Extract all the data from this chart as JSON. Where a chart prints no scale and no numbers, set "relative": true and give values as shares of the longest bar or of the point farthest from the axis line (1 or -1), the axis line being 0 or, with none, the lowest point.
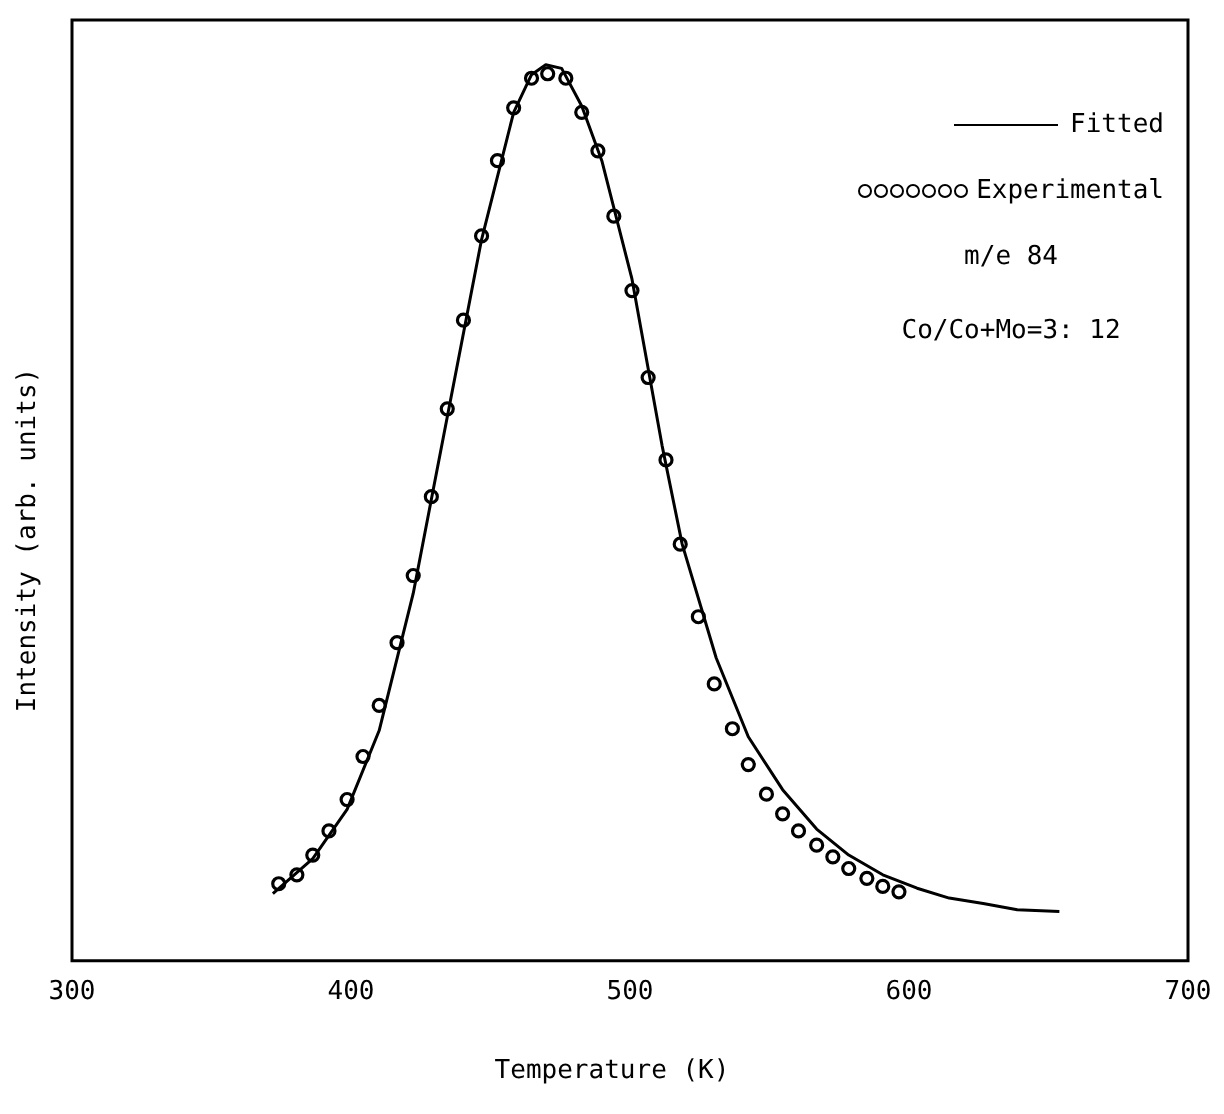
{
  "chart_data": {
    "type": "scatter",
    "xlabel": "Temperature (K)",
    "ylabel": "Intensity (arb. units)",
    "relative": true,
    "xlim": [
      300,
      700
    ],
    "xticks": [
      300,
      400,
      500,
      600,
      700
    ],
    "grid": false,
    "legend": "top right",
    "annotations": [
      "m/e 84",
      "Co/Co+Mo=3: 12"
    ],
    "series": [
      {
        "name": "Fitted",
        "type": "line",
        "color": "#000000",
        "marker": "none",
        "line_style": "solid",
        "x": [
          372.0,
          386.3,
          398.6,
          410.1,
          422.3,
          434.5,
          446.8,
          458.3,
          464.7,
          469.8,
          475.5,
          482.7,
          489.9,
          500.7,
          511.5,
          518.7,
          530.9,
          542.4,
          554.7,
          566.9,
          578.4,
          590.6,
          602.9,
          614.4,
          626.6,
          638.8,
          653.9
        ],
        "values": [
          0.075,
          0.114,
          0.169,
          0.257,
          0.41,
          0.607,
          0.805,
          0.947,
          0.989,
          1.0,
          0.996,
          0.954,
          0.893,
          0.761,
          0.575,
          0.465,
          0.338,
          0.25,
          0.191,
          0.147,
          0.118,
          0.096,
          0.081,
          0.07,
          0.064,
          0.057,
          0.055
        ]
      },
      {
        "name": "Experimental",
        "type": "scatter",
        "color": "#000000",
        "marker": "circle",
        "x": [
          374.1,
          380.6,
          386.3,
          392.1,
          398.6,
          404.3,
          410.1,
          416.5,
          422.3,
          428.8,
          434.5,
          440.3,
          446.8,
          452.5,
          458.3,
          464.7,
          470.5,
          477.0,
          482.7,
          488.5,
          494.2,
          500.7,
          506.5,
          512.9,
          518.0,
          524.5,
          530.2,
          536.7,
          542.4,
          548.9,
          554.7,
          560.4,
          566.9,
          572.7,
          578.4,
          584.9,
          590.6,
          596.4
        ],
        "values": [
          0.086,
          0.096,
          0.118,
          0.145,
          0.18,
          0.228,
          0.285,
          0.355,
          0.43,
          0.518,
          0.616,
          0.715,
          0.809,
          0.893,
          0.952,
          0.985,
          0.99,
          0.985,
          0.947,
          0.904,
          0.831,
          0.748,
          0.651,
          0.559,
          0.465,
          0.384,
          0.309,
          0.259,
          0.219,
          0.186,
          0.164,
          0.145,
          0.129,
          0.116,
          0.103,
          0.092,
          0.083,
          0.077
        ]
      }
    ]
  }
}
